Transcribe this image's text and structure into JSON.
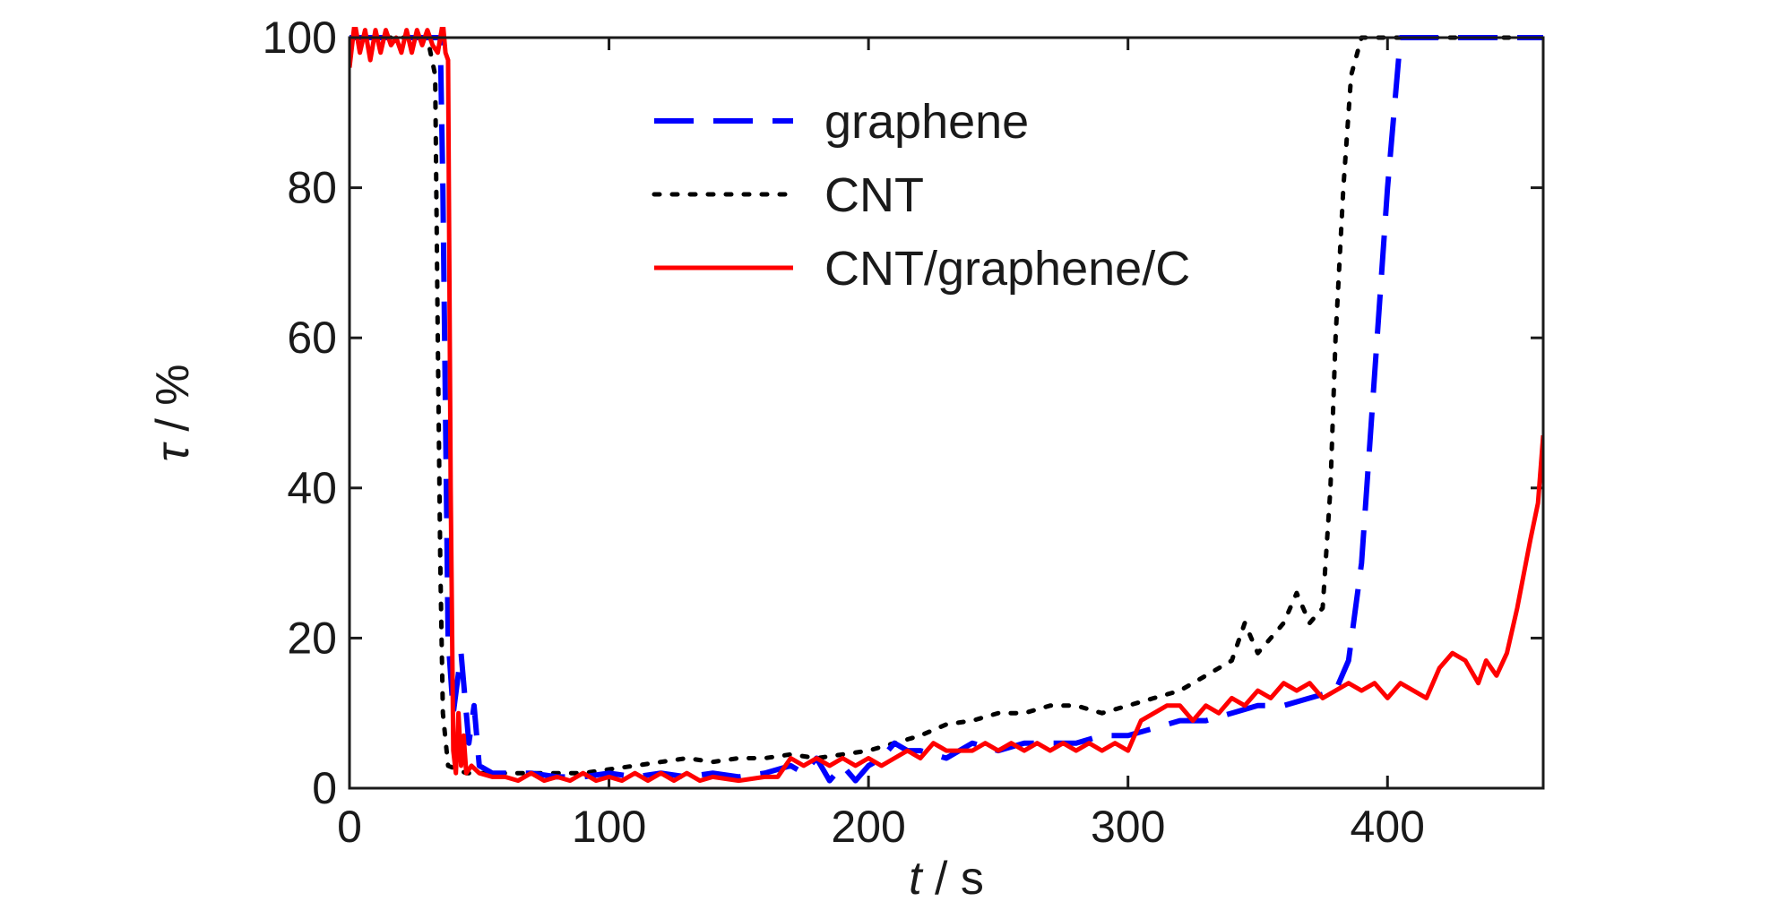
{
  "chart_data": {
    "type": "line",
    "xlabel": {
      "var": "t",
      "unit": " / s"
    },
    "ylabel": {
      "var": "τ",
      "unit": " / %"
    },
    "xlim": [
      0,
      460
    ],
    "ylim": [
      0,
      100
    ],
    "xticks": [
      0,
      100,
      200,
      300,
      400
    ],
    "yticks": [
      0,
      20,
      40,
      60,
      80,
      100
    ],
    "legend_position": "top-center",
    "series": [
      {
        "name": "graphene",
        "color": "#0000ff",
        "style": "dashed",
        "points": [
          [
            0,
            100
          ],
          [
            10,
            100
          ],
          [
            20,
            100
          ],
          [
            30,
            100
          ],
          [
            35,
            100
          ],
          [
            36,
            80
          ],
          [
            38,
            20
          ],
          [
            40,
            10
          ],
          [
            43,
            18
          ],
          [
            46,
            6
          ],
          [
            48,
            11
          ],
          [
            50,
            3
          ],
          [
            55,
            2
          ],
          [
            60,
            2
          ],
          [
            70,
            2
          ],
          [
            80,
            1.5
          ],
          [
            90,
            1.5
          ],
          [
            100,
            2
          ],
          [
            110,
            1.5
          ],
          [
            120,
            2
          ],
          [
            130,
            1.5
          ],
          [
            140,
            2
          ],
          [
            150,
            1.5
          ],
          [
            160,
            2
          ],
          [
            170,
            3
          ],
          [
            175,
            2
          ],
          [
            180,
            4
          ],
          [
            185,
            1
          ],
          [
            190,
            3
          ],
          [
            195,
            1
          ],
          [
            200,
            3
          ],
          [
            205,
            4
          ],
          [
            210,
            6
          ],
          [
            215,
            5
          ],
          [
            220,
            5
          ],
          [
            230,
            4
          ],
          [
            240,
            6
          ],
          [
            250,
            5
          ],
          [
            260,
            6
          ],
          [
            270,
            6
          ],
          [
            280,
            6
          ],
          [
            290,
            7
          ],
          [
            300,
            7
          ],
          [
            310,
            8
          ],
          [
            320,
            9
          ],
          [
            330,
            9
          ],
          [
            340,
            10
          ],
          [
            350,
            11
          ],
          [
            360,
            11
          ],
          [
            370,
            12
          ],
          [
            380,
            13
          ],
          [
            385,
            17
          ],
          [
            390,
            30
          ],
          [
            395,
            55
          ],
          [
            400,
            80
          ],
          [
            405,
            100
          ],
          [
            410,
            100
          ],
          [
            420,
            100
          ],
          [
            440,
            100
          ],
          [
            460,
            100
          ]
        ]
      },
      {
        "name": "CNT",
        "color": "#000000",
        "style": "dotted",
        "points": [
          [
            0,
            100
          ],
          [
            20,
            100
          ],
          [
            30,
            100
          ],
          [
            33,
            95
          ],
          [
            34,
            60
          ],
          [
            35,
            30
          ],
          [
            36,
            10
          ],
          [
            38,
            3
          ],
          [
            45,
            2
          ],
          [
            50,
            2
          ],
          [
            60,
            2
          ],
          [
            70,
            2
          ],
          [
            80,
            2
          ],
          [
            90,
            2
          ],
          [
            100,
            2.5
          ],
          [
            110,
            3
          ],
          [
            120,
            3.5
          ],
          [
            130,
            4
          ],
          [
            140,
            3.5
          ],
          [
            150,
            4
          ],
          [
            160,
            4
          ],
          [
            170,
            4.5
          ],
          [
            180,
            4
          ],
          [
            190,
            4.5
          ],
          [
            200,
            5
          ],
          [
            210,
            6
          ],
          [
            220,
            7
          ],
          [
            230,
            8.5
          ],
          [
            240,
            9
          ],
          [
            250,
            10
          ],
          [
            260,
            10
          ],
          [
            270,
            11
          ],
          [
            280,
            11
          ],
          [
            290,
            10
          ],
          [
            300,
            11
          ],
          [
            310,
            12
          ],
          [
            320,
            13
          ],
          [
            330,
            15
          ],
          [
            340,
            17
          ],
          [
            345,
            22
          ],
          [
            350,
            18
          ],
          [
            355,
            20
          ],
          [
            360,
            22
          ],
          [
            365,
            26
          ],
          [
            370,
            22
          ],
          [
            375,
            24
          ],
          [
            378,
            40
          ],
          [
            380,
            60
          ],
          [
            383,
            80
          ],
          [
            386,
            95
          ],
          [
            390,
            100
          ],
          [
            400,
            100
          ],
          [
            420,
            100
          ],
          [
            460,
            100
          ]
        ]
      },
      {
        "name": "CNT/graphene/C",
        "color": "#ff0000",
        "style": "solid",
        "points": [
          [
            0,
            96
          ],
          [
            2,
            102
          ],
          [
            4,
            98
          ],
          [
            6,
            101
          ],
          [
            8,
            97
          ],
          [
            10,
            101
          ],
          [
            12,
            98
          ],
          [
            14,
            101
          ],
          [
            16,
            99
          ],
          [
            18,
            100
          ],
          [
            20,
            98
          ],
          [
            22,
            101
          ],
          [
            24,
            98
          ],
          [
            26,
            101
          ],
          [
            28,
            99
          ],
          [
            30,
            101
          ],
          [
            32,
            99
          ],
          [
            34,
            98
          ],
          [
            36,
            102
          ],
          [
            37,
            98
          ],
          [
            38,
            97
          ],
          [
            39,
            40
          ],
          [
            40,
            5
          ],
          [
            41,
            2
          ],
          [
            42,
            10
          ],
          [
            43,
            3
          ],
          [
            44,
            7
          ],
          [
            45,
            2
          ],
          [
            47,
            3
          ],
          [
            50,
            2
          ],
          [
            55,
            1.5
          ],
          [
            60,
            1.5
          ],
          [
            65,
            1
          ],
          [
            70,
            2
          ],
          [
            75,
            1
          ],
          [
            80,
            1.5
          ],
          [
            85,
            1
          ],
          [
            90,
            2
          ],
          [
            95,
            1
          ],
          [
            100,
            1.5
          ],
          [
            105,
            1
          ],
          [
            110,
            2
          ],
          [
            115,
            1
          ],
          [
            120,
            2
          ],
          [
            125,
            1
          ],
          [
            130,
            2
          ],
          [
            135,
            1
          ],
          [
            140,
            1.5
          ],
          [
            150,
            1
          ],
          [
            160,
            1.5
          ],
          [
            165,
            1.5
          ],
          [
            170,
            4
          ],
          [
            175,
            3
          ],
          [
            180,
            4
          ],
          [
            185,
            3
          ],
          [
            190,
            4
          ],
          [
            195,
            3
          ],
          [
            200,
            4
          ],
          [
            205,
            3
          ],
          [
            210,
            4
          ],
          [
            215,
            5
          ],
          [
            220,
            4
          ],
          [
            225,
            6
          ],
          [
            230,
            5
          ],
          [
            235,
            5
          ],
          [
            240,
            5
          ],
          [
            245,
            6
          ],
          [
            250,
            5
          ],
          [
            255,
            6
          ],
          [
            260,
            5
          ],
          [
            265,
            6
          ],
          [
            270,
            5
          ],
          [
            275,
            6
          ],
          [
            280,
            5
          ],
          [
            285,
            6
          ],
          [
            290,
            5
          ],
          [
            295,
            6
          ],
          [
            300,
            5
          ],
          [
            305,
            9
          ],
          [
            310,
            10
          ],
          [
            315,
            11
          ],
          [
            320,
            11
          ],
          [
            325,
            9
          ],
          [
            330,
            11
          ],
          [
            335,
            10
          ],
          [
            340,
            12
          ],
          [
            345,
            11
          ],
          [
            350,
            13
          ],
          [
            355,
            12
          ],
          [
            360,
            14
          ],
          [
            365,
            13
          ],
          [
            370,
            14
          ],
          [
            375,
            12
          ],
          [
            380,
            13
          ],
          [
            385,
            14
          ],
          [
            390,
            13
          ],
          [
            395,
            14
          ],
          [
            400,
            12
          ],
          [
            405,
            14
          ],
          [
            410,
            13
          ],
          [
            415,
            12
          ],
          [
            420,
            16
          ],
          [
            425,
            18
          ],
          [
            430,
            17
          ],
          [
            435,
            14
          ],
          [
            438,
            17
          ],
          [
            442,
            15
          ],
          [
            446,
            18
          ],
          [
            450,
            24
          ],
          [
            455,
            33
          ],
          [
            458,
            38
          ],
          [
            460,
            47
          ]
        ]
      }
    ]
  }
}
